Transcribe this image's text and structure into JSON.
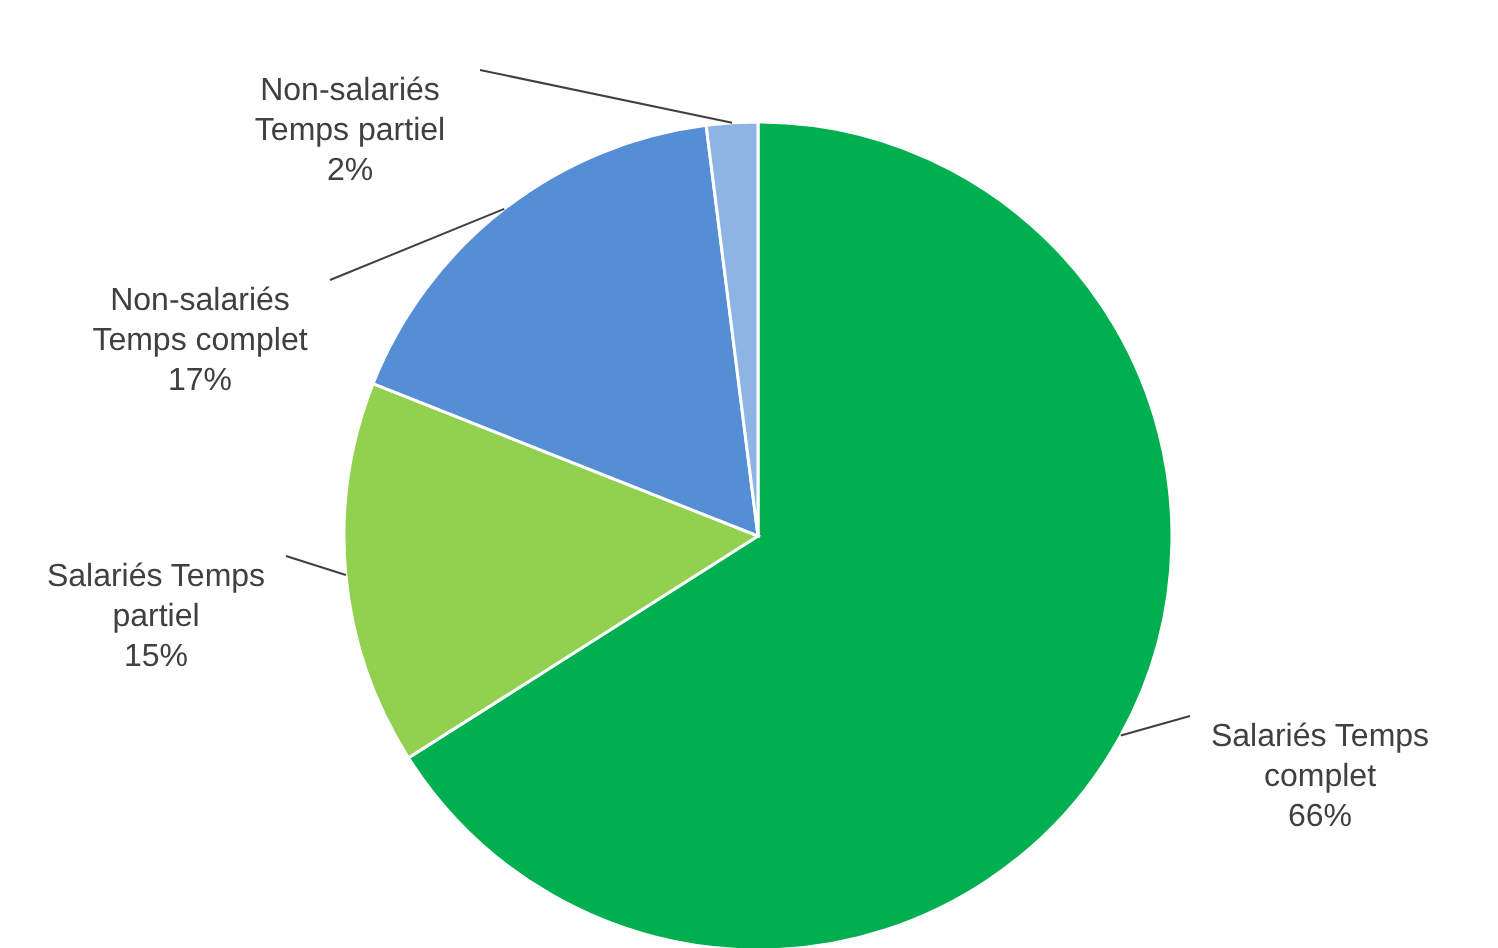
{
  "chart_data": {
    "type": "pie",
    "categories": [
      "Salariés Temps complet",
      "Salariés Temps partiel",
      "Non-salariés Temps complet",
      "Non-salariés Temps partiel"
    ],
    "values": [
      66,
      15,
      17,
      2
    ],
    "value_labels": [
      "66%",
      "15%",
      "17%",
      "2%"
    ],
    "colors": [
      "#00b050",
      "#92d050",
      "#558ed5",
      "#8db4e2"
    ]
  }
}
